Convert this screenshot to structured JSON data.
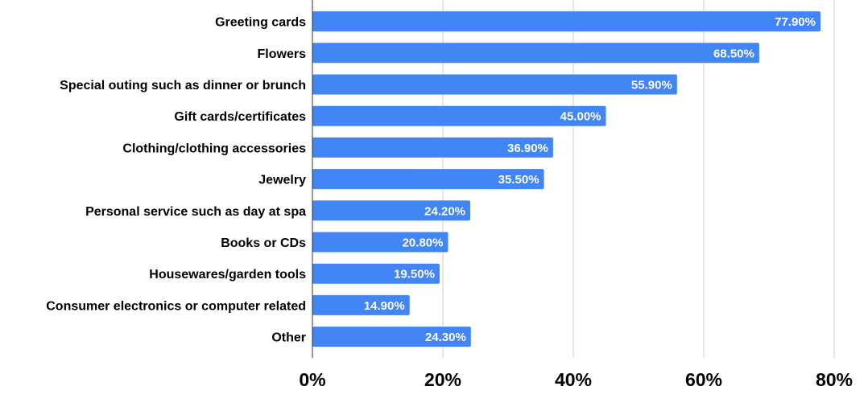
{
  "chart_data": {
    "type": "bar",
    "orientation": "horizontal",
    "categories": [
      "Greeting cards",
      "Flowers",
      "Special outing such as dinner or brunch",
      "Gift cards/certificates",
      "Clothing/clothing accessories",
      "Jewelry",
      "Personal service such as day at spa",
      "Books or CDs",
      "Housewares/garden tools",
      "Consumer electronics or computer related",
      "Other"
    ],
    "values": [
      77.9,
      68.5,
      55.9,
      45.0,
      36.9,
      35.5,
      24.2,
      20.8,
      19.5,
      14.9,
      24.3
    ],
    "data_labels": [
      "77.90%",
      "68.50%",
      "55.90%",
      "45.00%",
      "36.90%",
      "35.50%",
      "24.20%",
      "20.80%",
      "19.50%",
      "14.90%",
      "24.30%"
    ],
    "xlim": [
      0,
      80
    ],
    "x_ticks": [
      0,
      20,
      40,
      60,
      80
    ],
    "x_tick_labels": [
      "0%",
      "20%",
      "40%",
      "60%",
      "80%"
    ],
    "grid": true,
    "bar_color": "#4285f4",
    "title": "",
    "xlabel": "",
    "ylabel": ""
  }
}
